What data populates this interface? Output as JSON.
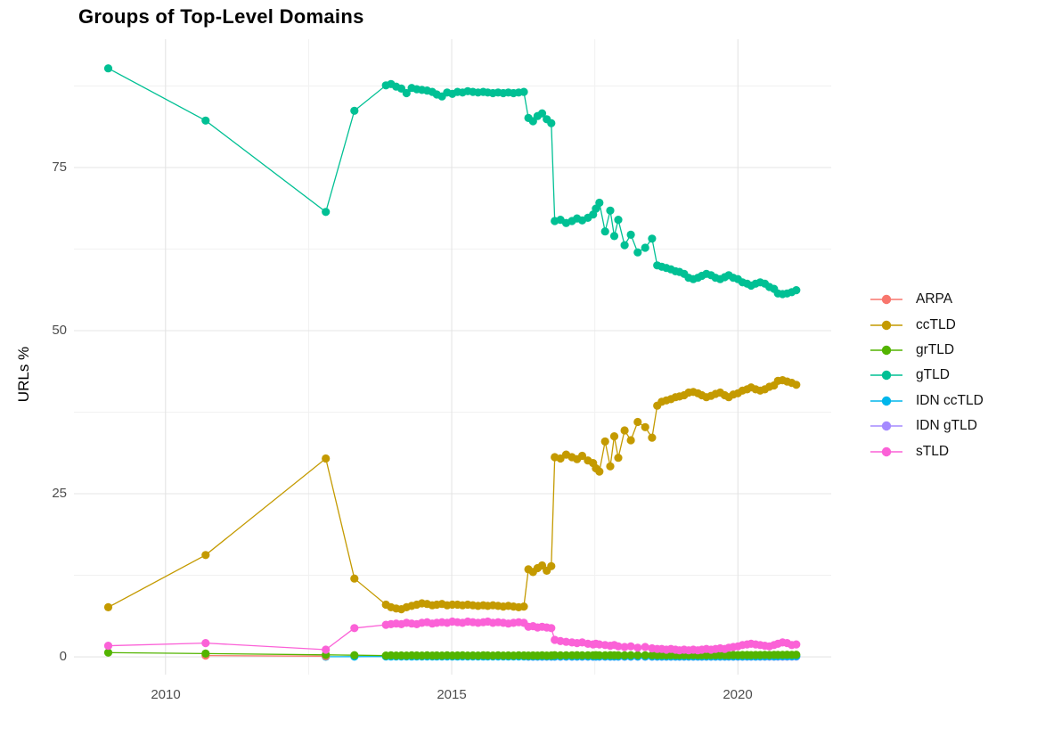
{
  "chart_data": {
    "type": "line",
    "title": "Groups of Top-Level Domains",
    "xlabel": "",
    "ylabel": "URLs %",
    "x_ticks": [
      2010,
      2015,
      2020
    ],
    "y_ticks": [
      0,
      25,
      50,
      75
    ],
    "x_minor": [
      2012.5,
      2017.5
    ],
    "y_minor": [
      12.5,
      37.5,
      62.5,
      87.5
    ],
    "xlim": [
      2008.4,
      2021.63
    ],
    "ylim": [
      -2.73,
      94.67
    ],
    "grid": "major and minor gridlines, light gray on white",
    "legend_position": "right",
    "colors": {
      "background": "#ffffff",
      "grid_major": "#e4e4e4",
      "grid_minor": "#f1f1f1",
      "tick_text": "#4d4d4d",
      "title_text": "#000000"
    },
    "series": [
      {
        "name": "ARPA",
        "color": "#F8766D",
        "z": 3,
        "x": [
          2010.7,
          2012.8
        ],
        "y": [
          0.2,
          0.1
        ]
      },
      {
        "name": "ccTLD",
        "color": "#C49A00",
        "z": 5,
        "x": [
          2009.0,
          2010.7,
          2012.8,
          2013.3,
          2013.85,
          2013.94,
          2014.03,
          2014.12,
          2014.21,
          2014.3,
          2014.39,
          2014.48,
          2014.57,
          2014.66,
          2014.74,
          2014.83,
          2014.92,
          2015.01,
          2015.1,
          2015.19,
          2015.28,
          2015.37,
          2015.46,
          2015.55,
          2015.63,
          2015.72,
          2015.81,
          2015.9,
          2015.99,
          2016.08,
          2016.17,
          2016.26,
          2016.34,
          2016.42,
          2016.5,
          2016.58,
          2016.66,
          2016.74,
          2016.8,
          2016.9,
          2017.0,
          2017.1,
          2017.19,
          2017.28,
          2017.38,
          2017.47,
          2017.52,
          2017.58,
          2017.68,
          2017.77,
          2017.84,
          2017.91,
          2018.02,
          2018.13,
          2018.25,
          2018.38,
          2018.5,
          2018.59,
          2018.67,
          2018.75,
          2018.83,
          2018.91,
          2018.98,
          2019.06,
          2019.14,
          2019.22,
          2019.3,
          2019.37,
          2019.45,
          2019.53,
          2019.61,
          2019.69,
          2019.77,
          2019.84,
          2019.92,
          2020.0,
          2020.08,
          2020.16,
          2020.23,
          2020.31,
          2020.39,
          2020.47,
          2020.55,
          2020.63,
          2020.7,
          2020.78,
          2020.86,
          2020.94,
          2021.02
        ],
        "y": [
          7.6,
          15.6,
          30.4,
          12.0,
          8.0,
          7.6,
          7.4,
          7.3,
          7.6,
          7.8,
          8.0,
          8.2,
          8.1,
          7.9,
          8.0,
          8.1,
          7.9,
          8.0,
          8.0,
          7.9,
          8.0,
          7.9,
          7.8,
          7.9,
          7.8,
          7.9,
          7.8,
          7.7,
          7.8,
          7.7,
          7.6,
          7.7,
          13.4,
          13.0,
          13.6,
          14.0,
          13.2,
          13.9,
          30.6,
          30.4,
          31.0,
          30.6,
          30.3,
          30.8,
          30.1,
          29.7,
          28.9,
          28.4,
          33.0,
          29.2,
          33.8,
          30.5,
          34.7,
          33.2,
          36.0,
          35.2,
          33.6,
          38.5,
          39.1,
          39.3,
          39.5,
          39.8,
          39.9,
          40.1,
          40.5,
          40.6,
          40.4,
          40.1,
          39.8,
          40.0,
          40.3,
          40.5,
          40.1,
          39.8,
          40.2,
          40.4,
          40.8,
          41.0,
          41.3,
          41.0,
          40.8,
          41.0,
          41.4,
          41.6,
          42.3,
          42.4,
          42.2,
          42.0,
          41.7
        ]
      },
      {
        "name": "grTLD",
        "color": "#53B400",
        "z": 4,
        "x": [
          2009.0,
          2010.7,
          2012.8,
          2013.3,
          2013.85,
          2013.94,
          2014.03,
          2014.12,
          2014.21,
          2014.3,
          2014.39,
          2014.48,
          2014.57,
          2014.66,
          2014.74,
          2014.83,
          2014.92,
          2015.01,
          2015.1,
          2015.19,
          2015.28,
          2015.37,
          2015.46,
          2015.55,
          2015.63,
          2015.72,
          2015.81,
          2015.9,
          2015.99,
          2016.08,
          2016.17,
          2016.26,
          2016.34,
          2016.42,
          2016.5,
          2016.58,
          2016.66,
          2016.74,
          2016.8,
          2016.9,
          2017.0,
          2017.1,
          2017.19,
          2017.28,
          2017.38,
          2017.47,
          2017.52,
          2017.58,
          2017.68,
          2017.77,
          2017.84,
          2017.91,
          2018.02,
          2018.13,
          2018.25,
          2018.38,
          2018.5,
          2018.59,
          2018.67,
          2018.75,
          2018.83,
          2018.91,
          2018.98,
          2019.06,
          2019.14,
          2019.22,
          2019.3,
          2019.37,
          2019.45,
          2019.53,
          2019.61,
          2019.69,
          2019.77,
          2019.84,
          2019.92,
          2020.0,
          2020.08,
          2020.16,
          2020.23,
          2020.31,
          2020.39,
          2020.47,
          2020.55,
          2020.63,
          2020.7,
          2020.78,
          2020.86,
          2020.94,
          2021.02
        ],
        "y": [
          0.65,
          0.5,
          0.3,
          0.25,
          0.2,
          0.22,
          0.2,
          0.21,
          0.2,
          0.22,
          0.21,
          0.2,
          0.22,
          0.2,
          0.21,
          0.2,
          0.22,
          0.2,
          0.21,
          0.22,
          0.2,
          0.21,
          0.2,
          0.22,
          0.21,
          0.2,
          0.22,
          0.2,
          0.21,
          0.2,
          0.22,
          0.21,
          0.2,
          0.21,
          0.2,
          0.22,
          0.2,
          0.21,
          0.25,
          0.22,
          0.24,
          0.23,
          0.25,
          0.22,
          0.24,
          0.23,
          0.25,
          0.24,
          0.22,
          0.25,
          0.23,
          0.24,
          0.22,
          0.25,
          0.23,
          0.24,
          0.25,
          0.23,
          0.25,
          0.24,
          0.26,
          0.25,
          0.24,
          0.26,
          0.25,
          0.27,
          0.25,
          0.26,
          0.24,
          0.26,
          0.25,
          0.27,
          0.26,
          0.25,
          0.27,
          0.26,
          0.28,
          0.27,
          0.26,
          0.28,
          0.27,
          0.29,
          0.28,
          0.3,
          0.29,
          0.3,
          0.31,
          0.3,
          0.32
        ]
      },
      {
        "name": "gTLD",
        "color": "#00C094",
        "z": 6,
        "x": [
          2009.0,
          2010.7,
          2012.8,
          2013.3,
          2013.85,
          2013.94,
          2014.03,
          2014.12,
          2014.21,
          2014.3,
          2014.39,
          2014.48,
          2014.57,
          2014.66,
          2014.74,
          2014.83,
          2014.92,
          2015.01,
          2015.1,
          2015.19,
          2015.28,
          2015.37,
          2015.46,
          2015.55,
          2015.63,
          2015.72,
          2015.81,
          2015.9,
          2015.99,
          2016.08,
          2016.17,
          2016.26,
          2016.34,
          2016.42,
          2016.5,
          2016.58,
          2016.66,
          2016.74,
          2016.8,
          2016.9,
          2017.0,
          2017.1,
          2017.19,
          2017.28,
          2017.38,
          2017.47,
          2017.52,
          2017.58,
          2017.68,
          2017.77,
          2017.84,
          2017.91,
          2018.02,
          2018.13,
          2018.25,
          2018.38,
          2018.5,
          2018.59,
          2018.67,
          2018.75,
          2018.83,
          2018.91,
          2018.98,
          2019.06,
          2019.14,
          2019.22,
          2019.3,
          2019.37,
          2019.45,
          2019.53,
          2019.61,
          2019.69,
          2019.77,
          2019.84,
          2019.92,
          2020.0,
          2020.08,
          2020.16,
          2020.23,
          2020.31,
          2020.39,
          2020.47,
          2020.55,
          2020.63,
          2020.7,
          2020.78,
          2020.86,
          2020.94,
          2021.02
        ],
        "y": [
          90.2,
          82.2,
          68.2,
          83.7,
          87.6,
          87.8,
          87.4,
          87.1,
          86.4,
          87.2,
          87.0,
          86.9,
          86.8,
          86.6,
          86.2,
          85.9,
          86.5,
          86.3,
          86.6,
          86.5,
          86.7,
          86.6,
          86.5,
          86.6,
          86.5,
          86.4,
          86.5,
          86.4,
          86.5,
          86.4,
          86.5,
          86.6,
          82.6,
          82.1,
          82.9,
          83.3,
          82.4,
          81.8,
          66.8,
          67.0,
          66.5,
          66.8,
          67.2,
          66.9,
          67.3,
          67.8,
          68.7,
          69.6,
          65.2,
          68.4,
          64.5,
          67.0,
          63.1,
          64.7,
          62.0,
          62.7,
          64.1,
          60.0,
          59.8,
          59.6,
          59.4,
          59.1,
          59.0,
          58.7,
          58.1,
          57.9,
          58.1,
          58.4,
          58.7,
          58.5,
          58.1,
          57.9,
          58.2,
          58.5,
          58.1,
          57.9,
          57.4,
          57.2,
          56.9,
          57.2,
          57.4,
          57.2,
          56.7,
          56.4,
          55.7,
          55.6,
          55.7,
          55.9,
          56.2
        ]
      },
      {
        "name": "IDN ccTLD",
        "color": "#00B6EB",
        "z": 2,
        "x": [
          2012.8,
          2013.3,
          2013.85,
          2013.94,
          2014.03,
          2014.12,
          2014.21,
          2014.3,
          2014.39,
          2014.48,
          2014.57,
          2014.66,
          2014.74,
          2014.83,
          2014.92,
          2015.01,
          2015.1,
          2015.19,
          2015.28,
          2015.37,
          2015.46,
          2015.55,
          2015.63,
          2015.72,
          2015.81,
          2015.9,
          2015.99,
          2016.08,
          2016.17,
          2016.26,
          2016.34,
          2016.42,
          2016.5,
          2016.58,
          2016.66,
          2016.74,
          2016.8,
          2016.9,
          2017.0,
          2017.1,
          2017.19,
          2017.28,
          2017.38,
          2017.47,
          2017.52,
          2017.58,
          2017.68,
          2017.77,
          2017.84,
          2017.91,
          2018.02,
          2018.13,
          2018.25,
          2018.38,
          2018.5,
          2018.59,
          2018.67,
          2018.75,
          2018.83,
          2018.91,
          2018.98,
          2019.06,
          2019.14,
          2019.22,
          2019.3,
          2019.37,
          2019.45,
          2019.53,
          2019.61,
          2019.69,
          2019.77,
          2019.84,
          2019.92,
          2020.0,
          2020.08,
          2020.16,
          2020.23,
          2020.31,
          2020.39,
          2020.47,
          2020.55,
          2020.63,
          2020.7,
          2020.78,
          2020.86,
          2020.94,
          2021.02
        ],
        "y": [
          0.02,
          0.03,
          0.05,
          0.04,
          0.05,
          0.06,
          0.05,
          0.04,
          0.05,
          0.06,
          0.05,
          0.05,
          0.04,
          0.05,
          0.06,
          0.05,
          0.04,
          0.05,
          0.05,
          0.06,
          0.05,
          0.04,
          0.05,
          0.06,
          0.05,
          0.05,
          0.04,
          0.05,
          0.06,
          0.05,
          0.05,
          0.04,
          0.05,
          0.06,
          0.05,
          0.05,
          0.06,
          0.05,
          0.06,
          0.05,
          0.06,
          0.05,
          0.06,
          0.05,
          0.06,
          0.05,
          0.06,
          0.05,
          0.06,
          0.05,
          0.06,
          0.05,
          0.06,
          0.05,
          0.06,
          0.05,
          0.06,
          0.05,
          0.06,
          0.06,
          0.05,
          0.06,
          0.05,
          0.06,
          0.06,
          0.05,
          0.06,
          0.06,
          0.05,
          0.06,
          0.06,
          0.07,
          0.06,
          0.07,
          0.06,
          0.07,
          0.07,
          0.06,
          0.07,
          0.07,
          0.08,
          0.07,
          0.08,
          0.08,
          0.09,
          0.09,
          0.1
        ]
      },
      {
        "name": "IDN gTLD",
        "color": "#A58AFF",
        "z": 1,
        "x": [
          2016.34,
          2016.42,
          2016.5,
          2016.58,
          2016.66,
          2016.74,
          2016.8,
          2016.9,
          2017.0,
          2017.1,
          2017.19,
          2017.28,
          2017.38,
          2017.47,
          2017.52,
          2017.58,
          2017.68,
          2017.77,
          2017.84,
          2017.91,
          2018.02,
          2018.13,
          2018.25,
          2018.38,
          2018.5,
          2018.59,
          2018.67,
          2018.75,
          2018.83,
          2018.91,
          2018.98,
          2019.06,
          2019.14,
          2019.22,
          2019.3,
          2019.37,
          2019.45,
          2019.53,
          2019.61,
          2019.69,
          2019.77,
          2019.84,
          2019.92,
          2020.0,
          2020.08,
          2020.16,
          2020.23,
          2020.31,
          2020.39,
          2020.47,
          2020.55,
          2020.63,
          2020.7,
          2020.78,
          2020.86,
          2020.94,
          2021.02
        ],
        "y": [
          0.02,
          0.02,
          0.02,
          0.02,
          0.02,
          0.02,
          0.02,
          0.02,
          0.02,
          0.02,
          0.02,
          0.02,
          0.02,
          0.02,
          0.02,
          0.02,
          0.02,
          0.02,
          0.02,
          0.02,
          0.02,
          0.02,
          0.02,
          0.02,
          0.02,
          0.02,
          0.02,
          0.02,
          0.02,
          0.02,
          0.02,
          0.02,
          0.02,
          0.02,
          0.02,
          0.02,
          0.02,
          0.02,
          0.02,
          0.02,
          0.02,
          0.02,
          0.02,
          0.02,
          0.02,
          0.02,
          0.02,
          0.02,
          0.02,
          0.02,
          0.02,
          0.02,
          0.02,
          0.02,
          0.02,
          0.03,
          0.03
        ]
      },
      {
        "name": "sTLD",
        "color": "#FB61D7",
        "z": 7,
        "x": [
          2009.0,
          2010.7,
          2012.8,
          2013.3,
          2013.85,
          2013.94,
          2014.03,
          2014.12,
          2014.21,
          2014.3,
          2014.39,
          2014.48,
          2014.57,
          2014.66,
          2014.74,
          2014.83,
          2014.92,
          2015.01,
          2015.1,
          2015.19,
          2015.28,
          2015.37,
          2015.46,
          2015.55,
          2015.63,
          2015.72,
          2015.81,
          2015.9,
          2015.99,
          2016.08,
          2016.17,
          2016.26,
          2016.34,
          2016.42,
          2016.5,
          2016.58,
          2016.66,
          2016.74,
          2016.8,
          2016.9,
          2017.0,
          2017.1,
          2017.19,
          2017.28,
          2017.38,
          2017.47,
          2017.52,
          2017.58,
          2017.68,
          2017.77,
          2017.84,
          2017.91,
          2018.02,
          2018.13,
          2018.25,
          2018.38,
          2018.5,
          2018.59,
          2018.67,
          2018.75,
          2018.83,
          2018.91,
          2018.98,
          2019.06,
          2019.14,
          2019.22,
          2019.3,
          2019.37,
          2019.45,
          2019.53,
          2019.61,
          2019.69,
          2019.77,
          2019.84,
          2019.92,
          2020.0,
          2020.08,
          2020.16,
          2020.23,
          2020.31,
          2020.39,
          2020.47,
          2020.55,
          2020.63,
          2020.7,
          2020.78,
          2020.86,
          2020.94,
          2021.02
        ],
        "y": [
          1.7,
          2.1,
          1.1,
          4.4,
          4.9,
          5.0,
          5.1,
          5.0,
          5.2,
          5.1,
          5.0,
          5.2,
          5.3,
          5.1,
          5.2,
          5.3,
          5.2,
          5.4,
          5.3,
          5.2,
          5.4,
          5.3,
          5.2,
          5.3,
          5.4,
          5.2,
          5.3,
          5.2,
          5.1,
          5.2,
          5.3,
          5.2,
          4.6,
          4.7,
          4.5,
          4.6,
          4.5,
          4.4,
          2.6,
          2.4,
          2.3,
          2.2,
          2.1,
          2.2,
          2.0,
          1.9,
          2.0,
          1.9,
          1.8,
          1.7,
          1.8,
          1.6,
          1.5,
          1.6,
          1.4,
          1.5,
          1.3,
          1.2,
          1.2,
          1.1,
          1.2,
          1.1,
          1.0,
          1.1,
          1.0,
          1.1,
          1.0,
          1.1,
          1.2,
          1.1,
          1.2,
          1.3,
          1.2,
          1.4,
          1.5,
          1.6,
          1.8,
          1.9,
          2.0,
          1.9,
          1.8,
          1.7,
          1.6,
          1.8,
          2.0,
          2.2,
          2.1,
          1.8,
          1.9
        ]
      }
    ]
  }
}
